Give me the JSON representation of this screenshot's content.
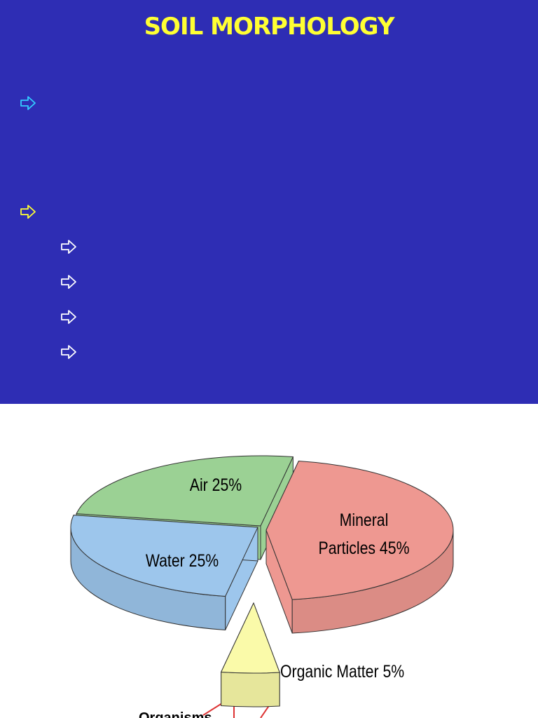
{
  "header": {
    "title": "SOIL MORPHOLOGY"
  },
  "chart_data": {
    "type": "pie",
    "categories": [
      "Air",
      "Water",
      "Mineral Particles",
      "Organic Matter"
    ],
    "values": [
      25,
      25,
      45,
      5
    ],
    "value_labels": [
      "25%",
      "25%",
      "45%",
      "5%"
    ],
    "colors": [
      "#9bd194",
      "#9dc6ec",
      "#ee9891",
      "#fafaa9"
    ],
    "annotations": [
      "Organisms"
    ]
  }
}
